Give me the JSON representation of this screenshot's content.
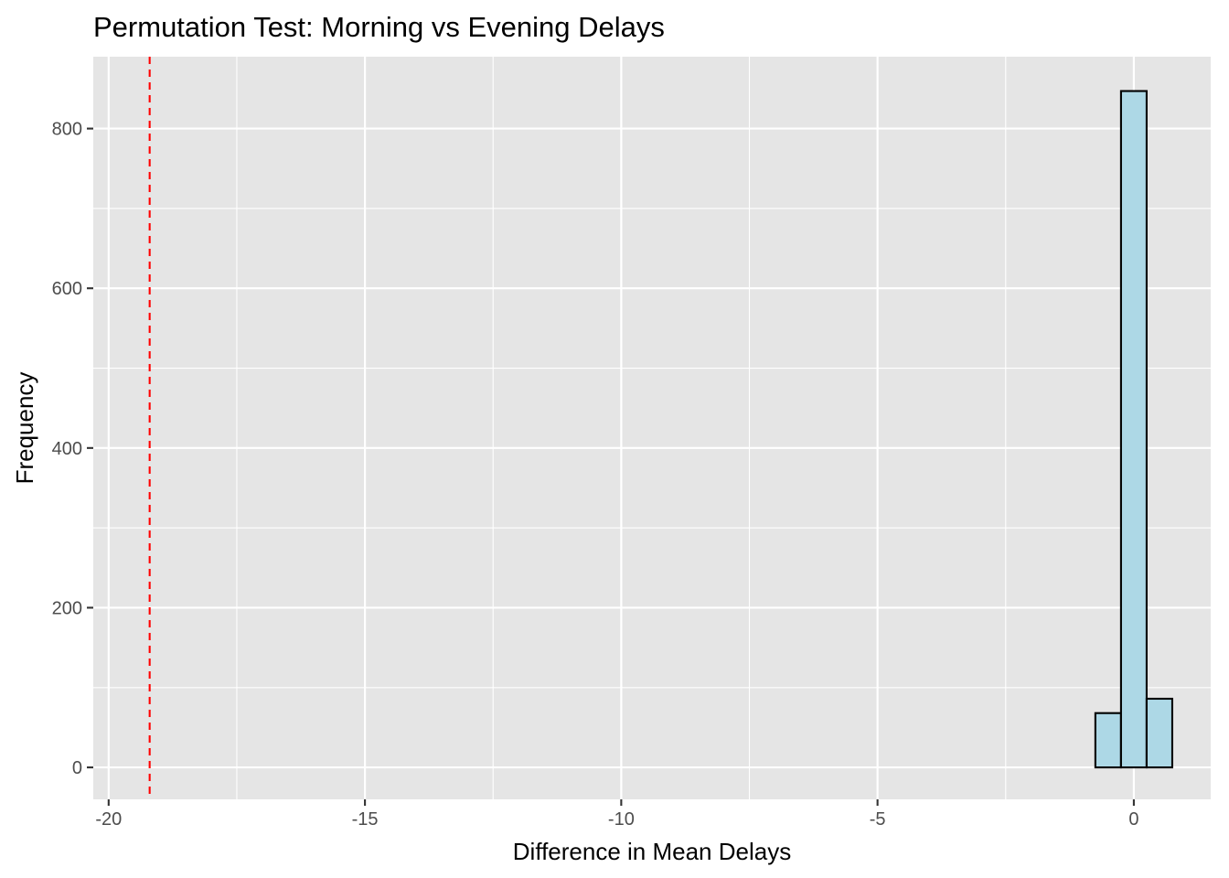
{
  "chart_data": {
    "type": "bar",
    "title": "Permutation Test: Morning vs Evening Delays",
    "xlabel": "Difference in Mean Delays",
    "ylabel": "Frequency",
    "xlim": [
      -20.3,
      1.5
    ],
    "ylim": [
      -40,
      890
    ],
    "x_ticks": [
      -20,
      -15,
      -10,
      -5,
      0
    ],
    "x_tick_labels": [
      "-20",
      "-15",
      "-10",
      "-5",
      "0"
    ],
    "y_ticks": [
      0,
      200,
      400,
      600,
      800
    ],
    "y_tick_labels": [
      "0",
      "200",
      "400",
      "600",
      "800"
    ],
    "grid": true,
    "bin_width": 0.5,
    "bins_start": -19.25,
    "bins_end": 0.75,
    "nonzero_bins": [
      {
        "x_start": -0.75,
        "x_end": -0.25,
        "count": 68
      },
      {
        "x_start": -0.25,
        "x_end": 0.25,
        "count": 847
      },
      {
        "x_start": 0.25,
        "x_end": 0.75,
        "count": 86
      }
    ],
    "observed_difference": -19.2,
    "colors": {
      "panel_background": "#E5E5E5",
      "grid": "#FFFFFF",
      "bar_fill": "#ADD8E6",
      "bar_outline": "#000000",
      "reference_line": "#FF0000"
    }
  }
}
